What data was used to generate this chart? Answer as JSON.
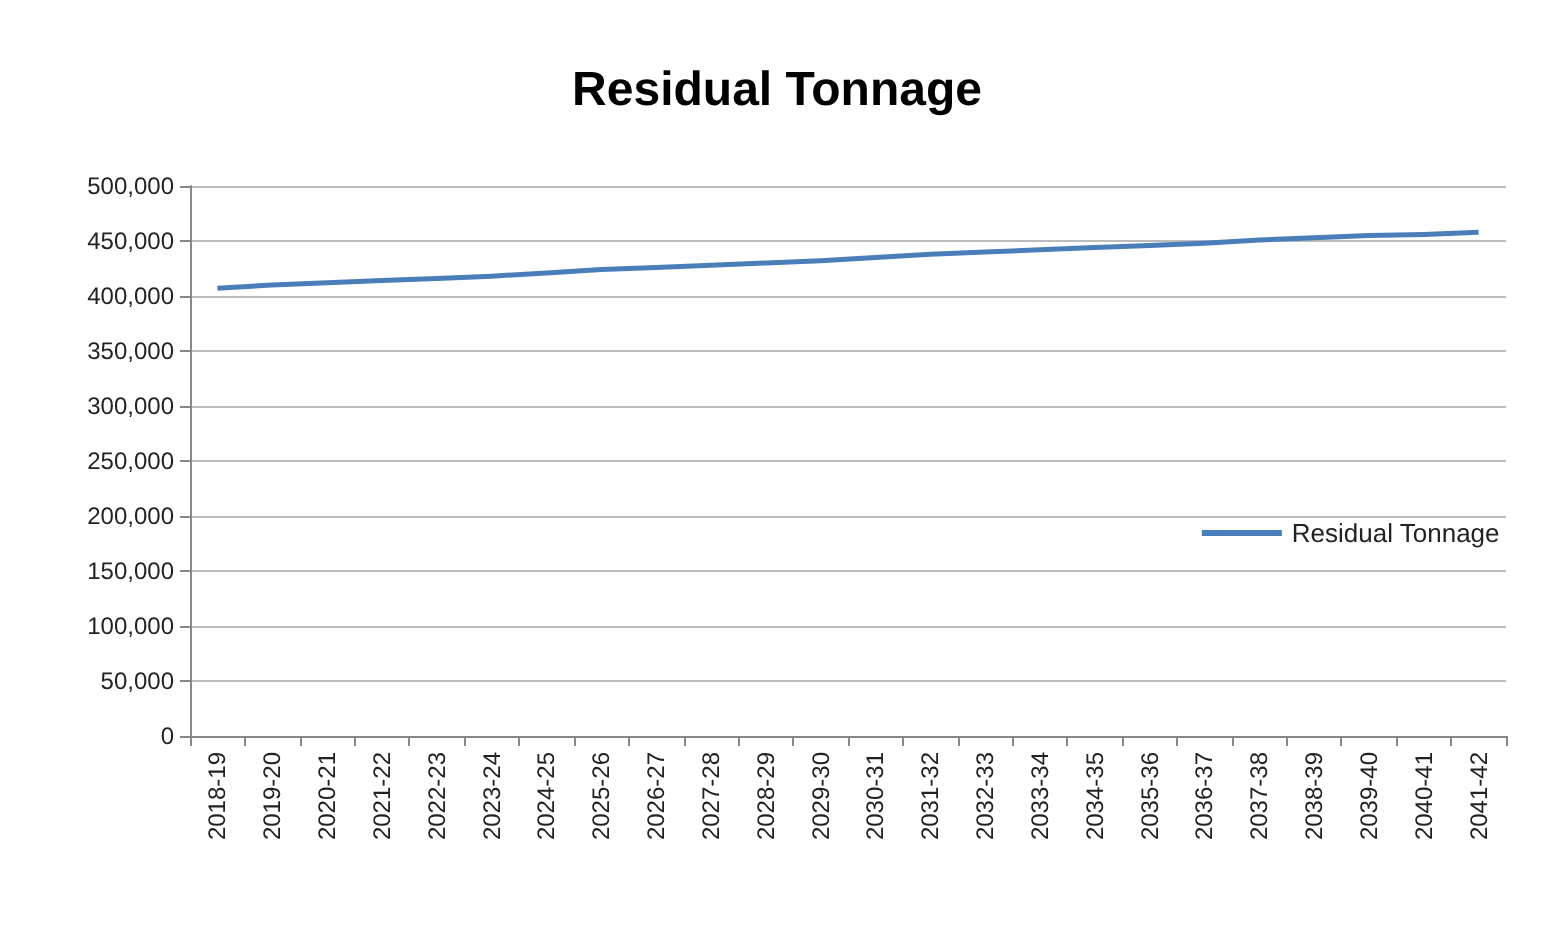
{
  "chart_data": {
    "type": "line",
    "title": "Residual Tonnage",
    "categories": [
      "2018-19",
      "2019-20",
      "2020-21",
      "2021-22",
      "2022-23",
      "2023-24",
      "2024-25",
      "2025-26",
      "2026-27",
      "2027-28",
      "2028-29",
      "2029-30",
      "2030-31",
      "2031-32",
      "2032-33",
      "2033-34",
      "2034-35",
      "2035-36",
      "2036-37",
      "2037-38",
      "2038-39",
      "2039-40",
      "2040-41",
      "2041-42"
    ],
    "series": [
      {
        "name": "Residual Tonnage",
        "color": "#4a7ebb",
        "values": [
          407000,
          410000,
          412000,
          414000,
          416000,
          418000,
          421000,
          424000,
          426000,
          428000,
          430000,
          432000,
          435000,
          438000,
          440000,
          442000,
          444000,
          446000,
          448000,
          451000,
          453000,
          455000,
          456000,
          458000
        ]
      }
    ],
    "ylim": [
      0,
      500000
    ],
    "yticks": [
      0,
      {
        "value": 50000,
        "label": "50,000"
      },
      {
        "value": 100000,
        "label": "100,000"
      },
      {
        "value": 150000,
        "label": "150,000"
      },
      {
        "value": 200000,
        "label": "200,000"
      },
      {
        "value": 250000,
        "label": "250,000"
      },
      {
        "value": 300000,
        "label": "300,000"
      },
      {
        "value": 350000,
        "label": "350,000"
      },
      {
        "value": 400000,
        "label": "400,000"
      },
      {
        "value": 450000,
        "label": "450,000"
      },
      {
        "value": 500000,
        "label": "500,000"
      }
    ],
    "grid": "y",
    "legend": "right",
    "marker": "none",
    "line_style": "solid"
  }
}
